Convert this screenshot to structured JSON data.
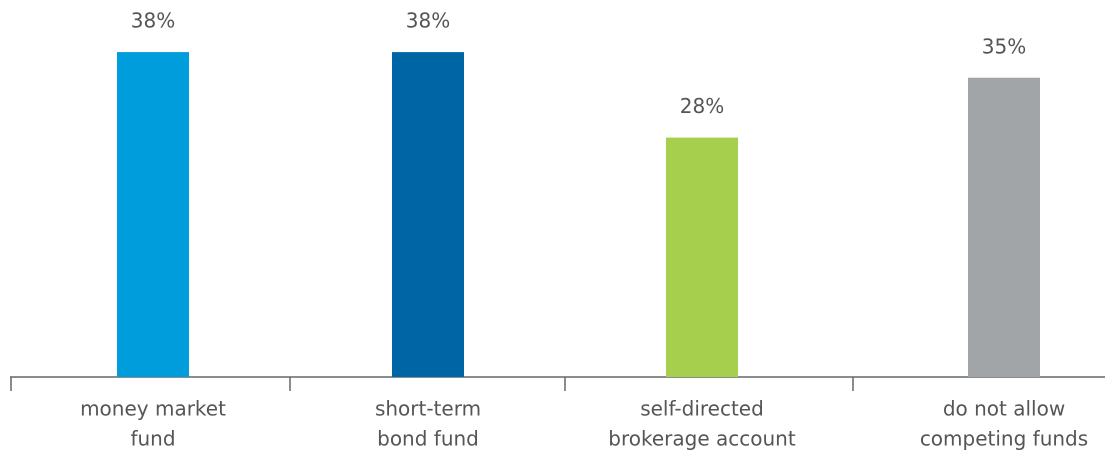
{
  "chart_data": {
    "type": "bar",
    "categories": [
      [
        "money market",
        "fund"
      ],
      [
        "short-term",
        "bond fund"
      ],
      [
        "self-directed",
        "brokerage account"
      ],
      [
        "do not allow",
        "competing funds"
      ]
    ],
    "values": [
      38,
      38,
      28,
      35
    ],
    "value_labels": [
      "38%",
      "38%",
      "28%",
      "35%"
    ],
    "colors": [
      "#009ddc",
      "#0065a4",
      "#a5cf4c",
      "#a2a5a8"
    ]
  }
}
